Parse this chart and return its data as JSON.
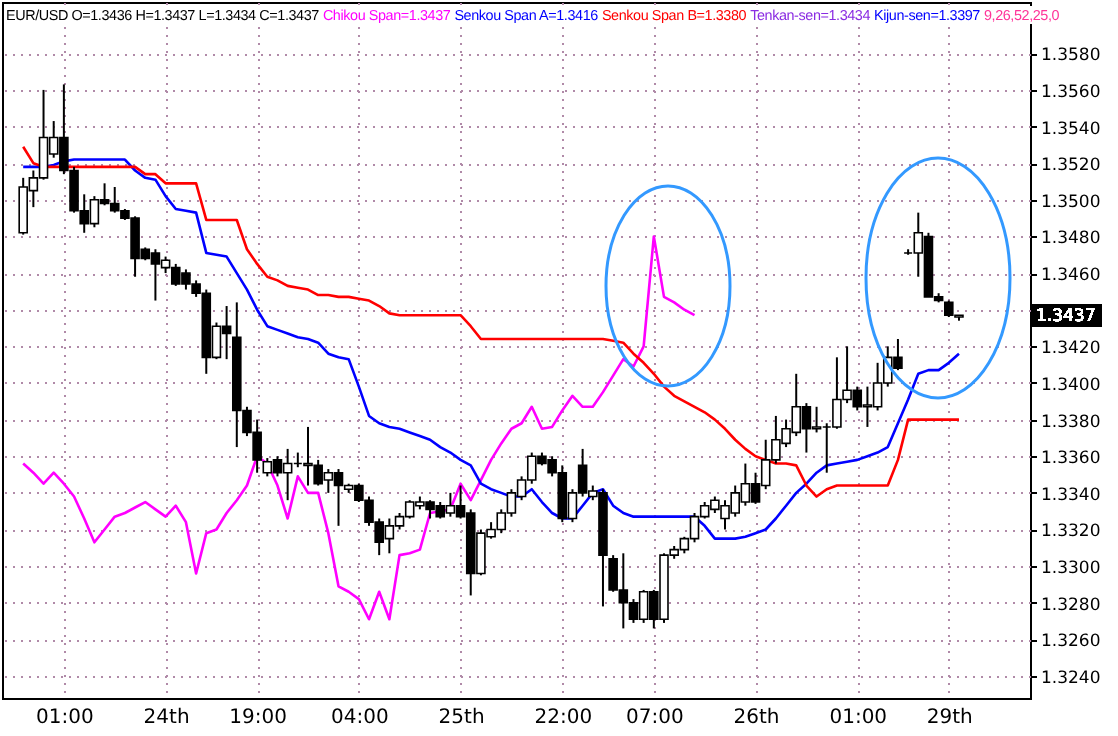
{
  "chart_data": {
    "type": "candlestick",
    "title": "EUR/USD O=1.3436 H=1.3437 L=1.3434 C=1.3437",
    "annotations": [
      "Tenkan-sen=1.3434",
      "Kijun-sen=1.3397",
      "9,26,52,25,0"
    ],
    "categories": [
      null,
      null,
      null,
      null,
      "01:00",
      null,
      null,
      null,
      null,
      null,
      null,
      null,
      null,
      null,
      "24th",
      null,
      null,
      null,
      null,
      null,
      null,
      null,
      null,
      "19:00",
      null,
      null,
      null,
      null,
      null,
      null,
      null,
      null,
      null,
      "04:00",
      null,
      null,
      null,
      null,
      null,
      null,
      null,
      null,
      null,
      "25th",
      null,
      null,
      null,
      null,
      null,
      null,
      null,
      null,
      null,
      "22:00",
      null,
      null,
      null,
      null,
      null,
      null,
      null,
      null,
      "07:00",
      null,
      null,
      null,
      null,
      null,
      null,
      null,
      null,
      null,
      "26th",
      null,
      null,
      null,
      null,
      null,
      null,
      null,
      null,
      null,
      "01:00",
      null,
      null,
      null,
      null,
      null,
      null,
      null,
      null,
      "29th",
      null
    ],
    "ohlc": [
      [
        1.3482,
        1.3512,
        1.3481,
        1.3507
      ],
      [
        1.3505,
        1.3516,
        1.3496,
        1.3512
      ],
      [
        1.3512,
        1.356,
        1.3511,
        1.3534
      ],
      [
        1.3525,
        1.3543,
        1.3523,
        1.3534
      ],
      [
        1.3534,
        1.3563,
        1.3514,
        1.3516
      ],
      [
        1.3516,
        1.3518,
        1.3493,
        1.3494
      ],
      [
        1.3494,
        1.3503,
        1.3482,
        1.3487
      ],
      [
        1.3487,
        1.3502,
        1.3485,
        1.35
      ],
      [
        1.35,
        1.3509,
        1.3497,
        1.3498
      ],
      [
        1.3498,
        1.3507,
        1.3493,
        1.3494
      ],
      [
        1.3494,
        1.3495,
        1.3489,
        1.349
      ],
      [
        1.349,
        1.3491,
        1.3458,
        1.3468
      ],
      [
        1.3473,
        1.3474,
        1.3467,
        1.3468
      ],
      [
        1.3471,
        1.3473,
        1.3445,
        1.3465
      ],
      [
        1.3463,
        1.3469,
        1.346,
        1.3467
      ],
      [
        1.3463,
        1.3465,
        1.3453,
        1.3454
      ],
      [
        1.346,
        1.3462,
        1.3451,
        1.3454
      ],
      [
        1.3454,
        1.3456,
        1.3447,
        1.3449
      ],
      [
        1.3449,
        1.3451,
        1.3405,
        1.3414
      ],
      [
        1.3414,
        1.3433,
        1.3413,
        1.3431
      ],
      [
        1.3431,
        1.3442,
        1.3413,
        1.3427
      ],
      [
        1.3425,
        1.3444,
        1.3365,
        1.3385
      ],
      [
        1.3385,
        1.3387,
        1.3371,
        1.3373
      ],
      [
        1.3373,
        1.338,
        1.3351,
        1.3358
      ],
      [
        1.3351,
        1.3359,
        1.3349,
        1.3357
      ],
      [
        1.3358,
        1.336,
        1.3349,
        1.3351
      ],
      [
        1.3351,
        1.3364,
        1.3336,
        1.3356
      ],
      [
        1.3356,
        1.3362,
        1.3354,
        1.3356
      ],
      [
        1.3355,
        1.3376,
        1.3344,
        1.3356
      ],
      [
        1.3355,
        1.3358,
        1.3344,
        1.3345
      ],
      [
        1.3347,
        1.3353,
        1.334,
        1.3351
      ],
      [
        1.3351,
        1.3353,
        1.3322,
        1.3344
      ],
      [
        1.3342,
        1.3345,
        1.334,
        1.3344
      ],
      [
        1.3344,
        1.3345,
        1.3335,
        1.3336
      ],
      [
        1.3336,
        1.3338,
        1.3322,
        1.3324
      ],
      [
        1.3324,
        1.3326,
        1.3306,
        1.3313
      ],
      [
        1.3315,
        1.3326,
        1.3307,
        1.3322
      ],
      [
        1.3322,
        1.3329,
        1.332,
        1.3327
      ],
      [
        1.3327,
        1.3336,
        1.3326,
        1.3335
      ],
      [
        1.3333,
        1.3338,
        1.3331,
        1.3335
      ],
      [
        1.3335,
        1.3336,
        1.3326,
        1.3331
      ],
      [
        1.3333,
        1.3335,
        1.3326,
        1.3327
      ],
      [
        1.3329,
        1.334,
        1.3327,
        1.3333
      ],
      [
        1.3333,
        1.3344,
        1.3326,
        1.3327
      ],
      [
        1.3329,
        1.3331,
        1.3284,
        1.3296
      ],
      [
        1.3296,
        1.332,
        1.3295,
        1.3318
      ],
      [
        1.3316,
        1.3324,
        1.3315,
        1.332
      ],
      [
        1.332,
        1.3331,
        1.3318,
        1.3329
      ],
      [
        1.3329,
        1.3342,
        1.3327,
        1.334
      ],
      [
        1.3338,
        1.3349,
        1.3336,
        1.3347
      ],
      [
        1.3347,
        1.3362,
        1.3345,
        1.336
      ],
      [
        1.336,
        1.3362,
        1.3355,
        1.3356
      ],
      [
        1.3358,
        1.336,
        1.3349,
        1.3351
      ],
      [
        1.3351,
        1.3355,
        1.3324,
        1.3326
      ],
      [
        1.3326,
        1.3342,
        1.3324,
        1.334
      ],
      [
        1.3355,
        1.3364,
        1.3338,
        1.334
      ],
      [
        1.3338,
        1.3344,
        1.3336,
        1.3341
      ],
      [
        1.334,
        1.3342,
        1.3278,
        1.3306
      ],
      [
        1.3304,
        1.3306,
        1.3286,
        1.3287
      ],
      [
        1.3287,
        1.3307,
        1.3266,
        1.328
      ],
      [
        1.328,
        1.3282,
        1.3269,
        1.3271
      ],
      [
        1.3271,
        1.3287,
        1.3269,
        1.3286
      ],
      [
        1.3286,
        1.3287,
        1.3266,
        1.3271
      ],
      [
        1.3271,
        1.3307,
        1.3269,
        1.3306
      ],
      [
        1.3306,
        1.3311,
        1.3304,
        1.3309
      ],
      [
        1.3309,
        1.3316,
        1.3307,
        1.3315
      ],
      [
        1.3315,
        1.3329,
        1.3313,
        1.3327
      ],
      [
        1.3327,
        1.3335,
        1.3326,
        1.3333
      ],
      [
        1.3331,
        1.3338,
        1.3329,
        1.3336
      ],
      [
        1.3326,
        1.3336,
        1.332,
        1.3333
      ],
      [
        1.3329,
        1.3344,
        1.3327,
        1.334
      ],
      [
        1.3335,
        1.3356,
        1.3333,
        1.3345
      ],
      [
        1.3345,
        1.3351,
        1.3334,
        1.3335
      ],
      [
        1.3344,
        1.3369,
        1.3342,
        1.3358
      ],
      [
        1.3358,
        1.3382,
        1.3356,
        1.3369
      ],
      [
        1.3367,
        1.338,
        1.3365,
        1.3375
      ],
      [
        1.3373,
        1.3405,
        1.3371,
        1.3387
      ],
      [
        1.3387,
        1.3389,
        1.3362,
        1.3375
      ],
      [
        1.3375,
        1.3387,
        1.3373,
        1.3376
      ],
      [
        1.3376,
        1.3378,
        1.3351,
        1.3376
      ],
      [
        1.3376,
        1.3414,
        1.3375,
        1.3391
      ],
      [
        1.3391,
        1.342,
        1.3389,
        1.3396
      ],
      [
        1.3396,
        1.3398,
        1.3385,
        1.3387
      ],
      [
        1.3387,
        1.3398,
        1.3376,
        1.3388
      ],
      [
        1.3387,
        1.3411,
        1.3385,
        1.34
      ],
      [
        1.34,
        1.342,
        1.3398,
        1.3414
      ],
      [
        1.3414,
        1.3424,
        1.3407,
        1.3408
      ],
      [
        1.3471,
        1.3473,
        1.347,
        1.3471
      ],
      [
        1.3471,
        1.3493,
        1.3458,
        1.3482
      ],
      [
        1.348,
        1.3482,
        1.3447,
        1.3447
      ],
      [
        1.3447,
        1.3449,
        1.3444,
        1.3445
      ],
      [
        1.3444,
        1.3445,
        1.3436,
        1.3437
      ],
      [
        1.3436,
        1.3437,
        1.3434,
        1.3437
      ]
    ],
    "series": [
      {
        "name": "Chikou Span=1.3437",
        "type": "line",
        "color": "#ff00ff",
        "values": [
          1.3356,
          1.3351,
          1.3345,
          1.3351,
          1.3345,
          1.3338,
          1.3326,
          1.3313,
          1.332,
          1.3327,
          1.3329,
          1.3332,
          1.3335,
          1.3331,
          1.3327,
          1.3333,
          1.3324,
          1.3296,
          1.3318,
          1.332,
          1.3329,
          1.3336,
          1.3344,
          1.336,
          1.3356,
          1.3344,
          1.3326,
          1.3349,
          1.334,
          1.334,
          1.3318,
          1.3289,
          1.3286,
          1.3282,
          1.3271,
          1.3286,
          1.3271,
          1.3306,
          1.3307,
          1.3309,
          1.3329,
          1.333,
          1.3331,
          1.3345,
          1.3336,
          1.3347,
          1.3358,
          1.3367,
          1.3375,
          1.3378,
          1.3387,
          1.3375,
          1.3376,
          1.3385,
          1.3393,
          1.3387,
          1.3387,
          1.3395,
          1.3404,
          1.3413,
          1.3409,
          1.342,
          1.348,
          1.3447,
          1.3444,
          1.344,
          1.3437,
          null,
          null,
          null,
          null,
          null,
          null,
          null,
          null,
          null,
          null,
          null,
          null,
          null,
          null,
          null,
          null,
          null,
          null,
          null,
          null,
          null,
          null,
          null,
          null,
          null,
          null
        ]
      },
      {
        "name": "Senkou Span A=1.3416",
        "type": "line",
        "color": "#0000ff",
        "values": [
          1.3518,
          1.3518,
          1.3518,
          1.3519,
          1.3521,
          1.3522,
          1.3522,
          1.3522,
          1.3522,
          1.3522,
          1.3522,
          1.3516,
          1.3512,
          1.3511,
          1.3502,
          1.3495,
          1.3494,
          1.3493,
          1.3471,
          1.347,
          1.3469,
          1.346,
          1.3451,
          1.344,
          1.3431,
          1.3429,
          1.3427,
          1.3425,
          1.3424,
          1.3422,
          1.3416,
          1.3414,
          1.3413,
          1.3398,
          1.3382,
          1.3378,
          1.3376,
          1.3375,
          1.3373,
          1.3371,
          1.3369,
          1.3365,
          1.3362,
          1.3358,
          1.3355,
          1.3345,
          1.3342,
          1.334,
          1.3338,
          1.3338,
          1.3342,
          1.3335,
          1.3329,
          1.3326,
          1.3326,
          1.3333,
          1.334,
          1.3342,
          1.3333,
          1.3329,
          1.3327,
          1.3327,
          1.3327,
          1.3327,
          1.3327,
          1.3327,
          1.3327,
          1.3322,
          1.3315,
          1.3315,
          1.3315,
          1.3316,
          1.3318,
          1.332,
          1.3326,
          1.3333,
          1.334,
          1.3345,
          1.3351,
          1.3355,
          1.3356,
          1.3357,
          1.3358,
          1.336,
          1.3362,
          1.3365,
          1.3378,
          1.3391,
          1.3405,
          1.3407,
          1.3407,
          1.3411,
          1.3416
        ]
      },
      {
        "name": "Senkou Span B=1.3380",
        "type": "line",
        "color": "#ff0000",
        "values": [
          1.3529,
          1.352,
          1.3518,
          1.3518,
          1.3518,
          1.3518,
          1.3518,
          1.3518,
          1.3518,
          1.3518,
          1.3518,
          1.3518,
          1.3514,
          1.3514,
          1.3509,
          1.3509,
          1.3509,
          1.3509,
          1.3489,
          1.3489,
          1.3489,
          1.3489,
          1.3473,
          1.3465,
          1.3458,
          1.3456,
          1.3453,
          1.3452,
          1.3451,
          1.3448,
          1.3448,
          1.3447,
          1.3447,
          1.3446,
          1.3445,
          1.3442,
          1.3438,
          1.3437,
          1.3437,
          1.3437,
          1.3437,
          1.3437,
          1.3437,
          1.3437,
          1.3431,
          1.3424,
          1.3424,
          1.3424,
          1.3424,
          1.3424,
          1.3424,
          1.3424,
          1.3424,
          1.3424,
          1.3424,
          1.3424,
          1.3424,
          1.3424,
          1.3423,
          1.3422,
          1.3416,
          1.3411,
          1.3405,
          1.3398,
          1.3393,
          1.339,
          1.3387,
          1.3384,
          1.338,
          1.3375,
          1.3369,
          1.3364,
          1.336,
          1.3358,
          1.3356,
          1.3356,
          1.3355,
          1.3344,
          1.3338,
          1.3342,
          1.3344,
          1.3344,
          1.3344,
          1.3344,
          1.3344,
          1.3344,
          1.3358,
          1.338,
          1.338,
          1.338,
          1.338,
          1.338,
          1.338
        ]
      }
    ],
    "ref_lines": [
      {
        "axis": "y",
        "value": 1.3437,
        "label": "1.3437"
      }
    ],
    "ylim": [
      1.3228,
      1.3608
    ],
    "yticks": [
      {
        "value": 1.324,
        "label": "1.3240"
      },
      {
        "value": 1.326,
        "label": "1.3260"
      },
      {
        "value": 1.328,
        "label": "1.3280"
      },
      {
        "value": 1.33,
        "label": "1.3300"
      },
      {
        "value": 1.332,
        "label": "1.3320"
      },
      {
        "value": 1.334,
        "label": "1.3340"
      },
      {
        "value": 1.336,
        "label": "1.3360"
      },
      {
        "value": 1.338,
        "label": "1.3380"
      },
      {
        "value": 1.34,
        "label": "1.3400"
      },
      {
        "value": 1.342,
        "label": "1.3420"
      },
      {
        "value": 1.344,
        "label": null
      },
      {
        "value": 1.346,
        "label": "1.3460"
      },
      {
        "value": 1.348,
        "label": "1.3480"
      },
      {
        "value": 1.35,
        "label": "1.3500"
      },
      {
        "value": 1.352,
        "label": "1.3520"
      },
      {
        "value": 1.354,
        "label": "1.3540"
      },
      {
        "value": 1.356,
        "label": "1.3560"
      },
      {
        "value": 1.358,
        "label": "1.3580"
      }
    ],
    "grid": true,
    "legend": "top"
  }
}
